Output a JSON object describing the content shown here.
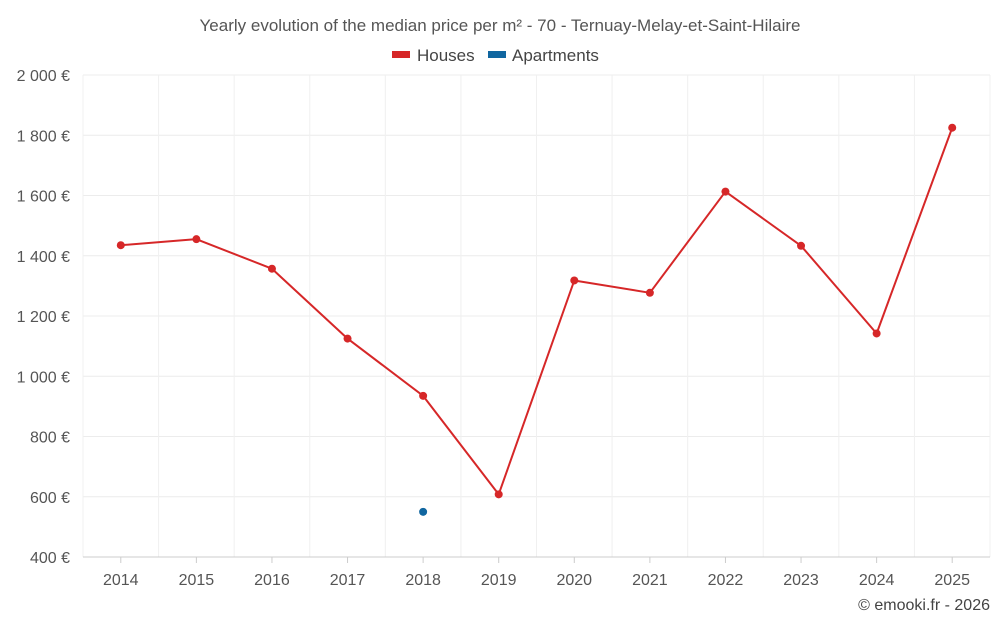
{
  "chart_data": {
    "type": "line",
    "title": "Yearly evolution of the median price per m² - 70 - Ternuay-Melay-et-Saint-Hilaire",
    "x": [
      "2014",
      "2015",
      "2016",
      "2017",
      "2018",
      "2019",
      "2020",
      "2021",
      "2022",
      "2023",
      "2024",
      "2025"
    ],
    "series": [
      {
        "name": "Houses",
        "color": "#d62728",
        "values": [
          1435,
          1455,
          1357,
          1125,
          935,
          608,
          1318,
          1277,
          1613,
          1433,
          1142,
          1825
        ]
      },
      {
        "name": "Apartments",
        "color": "#1066a0",
        "values": [
          null,
          null,
          null,
          null,
          550,
          null,
          null,
          null,
          null,
          null,
          null,
          null
        ]
      }
    ],
    "ylim": [
      400,
      2000
    ],
    "yticks": [
      400,
      600,
      800,
      1000,
      1200,
      1400,
      1600,
      1800,
      2000
    ],
    "ytick_labels": [
      "400 €",
      "600 €",
      "800 €",
      "1 000 €",
      "1 200 €",
      "1 400 €",
      "1 600 €",
      "1 800 €",
      "2 000 €"
    ],
    "xlabel": "",
    "ylabel": "",
    "grid": true,
    "legend_position": "top-center"
  },
  "credit": "© emooki.fr - 2026"
}
